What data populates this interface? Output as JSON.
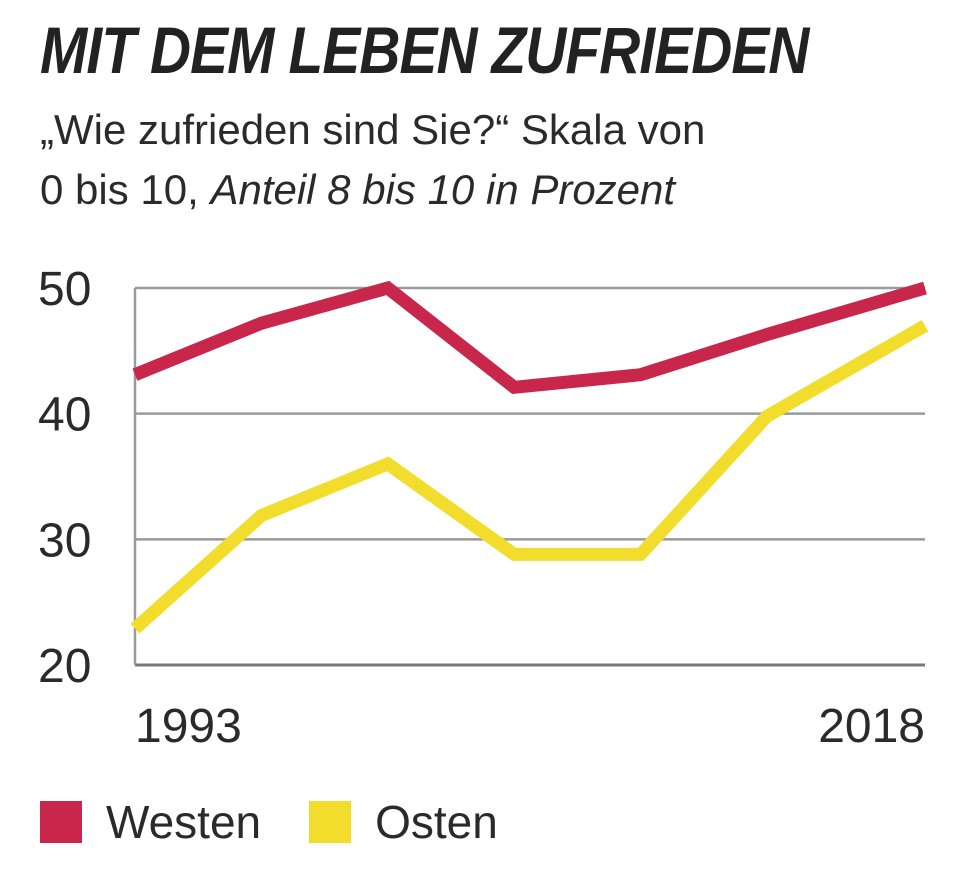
{
  "chart_data": {
    "type": "line",
    "title": "MIT DEM LEBEN ZUFRIEDEN",
    "subtitle_line1": "„Wie zufrieden sind Sie?“ Skala von",
    "subtitle_line2_prefix": "0 bis 10, ",
    "subtitle_line2_italic": "Anteil 8 bis 10 in Prozent",
    "x": [
      1993,
      1998,
      2003,
      2008,
      2013,
      2018
    ],
    "x_tick_labels": [
      {
        "value": 1993,
        "label": "1993"
      },
      {
        "value": 2018,
        "label": "2018"
      }
    ],
    "y_ticks": [
      20,
      30,
      40,
      50
    ],
    "ylim": [
      20,
      50
    ],
    "xlim": [
      1993,
      2018
    ],
    "grid": true,
    "series": [
      {
        "name": "Westen",
        "color": "#c8264a",
        "points": [
          [
            1993,
            43.1
          ],
          [
            1997,
            47.2
          ],
          [
            2001,
            50.0
          ],
          [
            2005,
            42.1
          ],
          [
            2009,
            43.1
          ],
          [
            2013,
            46.3
          ],
          [
            2018,
            50.0
          ]
        ]
      },
      {
        "name": "Osten",
        "color": "#f2dc2c",
        "points": [
          [
            1993,
            22.9
          ],
          [
            1997,
            31.9
          ],
          [
            2001,
            36.0
          ],
          [
            2005,
            28.8
          ],
          [
            2009,
            28.8
          ],
          [
            2013,
            39.8
          ],
          [
            2018,
            47.0
          ]
        ]
      }
    ],
    "legend_position": "bottom-left"
  }
}
